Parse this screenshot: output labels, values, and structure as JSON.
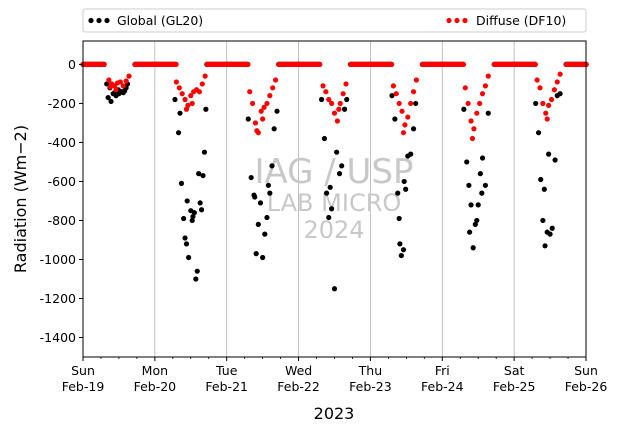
{
  "chart_data": {
    "type": "scatter",
    "xlabel": "2023",
    "ylabel": "Radiation (Wm−2)",
    "ylim": [
      -1500,
      120
    ],
    "yticks": [
      0,
      -200,
      -400,
      -600,
      -800,
      -1000,
      -1200,
      -1400
    ],
    "xlim": [
      0,
      7
    ],
    "xticks": [
      {
        "x": 0,
        "day": "Sun",
        "date": "Feb-19"
      },
      {
        "x": 1,
        "day": "Mon",
        "date": "Feb-20"
      },
      {
        "x": 2,
        "day": "Tue",
        "date": "Feb-21"
      },
      {
        "x": 3,
        "day": "Wed",
        "date": "Feb-22"
      },
      {
        "x": 4,
        "day": "Thu",
        "date": "Feb-23"
      },
      {
        "x": 5,
        "day": "Fri",
        "date": "Feb-24"
      },
      {
        "x": 6,
        "day": "Sat",
        "date": "Feb-25"
      },
      {
        "x": 7,
        "day": "Sun",
        "date": "Feb-26"
      }
    ],
    "grid": "vertical",
    "legend": {
      "placement": "top, above plot"
    },
    "watermark": [
      "IAG / USP",
      "LAB MICRO",
      "2024"
    ],
    "series": [
      {
        "name": "Global (GL20)",
        "color": "#000000",
        "points": [
          [
            0.33,
            -100
          ],
          [
            0.375,
            -120
          ],
          [
            0.42,
            -150
          ],
          [
            0.46,
            -160
          ],
          [
            0.5,
            -150
          ],
          [
            0.54,
            -140
          ],
          [
            0.58,
            -135
          ],
          [
            0.62,
            -100
          ],
          [
            0.35,
            -170
          ],
          [
            0.39,
            -190
          ],
          [
            0.44,
            -145
          ],
          [
            0.49,
            -130
          ],
          [
            0.56,
            -145
          ],
          [
            0.6,
            -120
          ],
          [
            1.28,
            -180
          ],
          [
            1.33,
            -350
          ],
          [
            1.37,
            -610
          ],
          [
            1.4,
            -790
          ],
          [
            1.42,
            -890
          ],
          [
            1.44,
            -920
          ],
          [
            1.47,
            -990
          ],
          [
            1.5,
            -750
          ],
          [
            1.52,
            -800
          ],
          [
            1.55,
            -760
          ],
          [
            1.57,
            -1100
          ],
          [
            1.59,
            -1060
          ],
          [
            1.61,
            -560
          ],
          [
            1.63,
            -710
          ],
          [
            1.65,
            -745
          ],
          [
            1.67,
            -570
          ],
          [
            1.69,
            -450
          ],
          [
            1.71,
            -230
          ],
          [
            1.45,
            -700
          ],
          [
            1.53,
            -780
          ],
          [
            1.35,
            -250
          ],
          [
            2.3,
            -280
          ],
          [
            2.34,
            -580
          ],
          [
            2.38,
            -670
          ],
          [
            2.41,
            -970
          ],
          [
            2.44,
            -820
          ],
          [
            2.47,
            -710
          ],
          [
            2.5,
            -990
          ],
          [
            2.53,
            -870
          ],
          [
            2.56,
            -785
          ],
          [
            2.6,
            -660
          ],
          [
            2.63,
            -520
          ],
          [
            2.66,
            -330
          ],
          [
            2.7,
            -240
          ],
          [
            2.39,
            -680
          ],
          [
            2.58,
            -620
          ],
          [
            3.32,
            -180
          ],
          [
            3.36,
            -380
          ],
          [
            3.39,
            -660
          ],
          [
            3.42,
            -785
          ],
          [
            3.46,
            -740
          ],
          [
            3.5,
            -1150
          ],
          [
            3.53,
            -450
          ],
          [
            3.57,
            -560
          ],
          [
            3.6,
            -520
          ],
          [
            3.64,
            -230
          ],
          [
            3.67,
            -180
          ],
          [
            3.44,
            -630
          ],
          [
            4.3,
            -160
          ],
          [
            4.34,
            -280
          ],
          [
            4.38,
            -660
          ],
          [
            4.41,
            -920
          ],
          [
            4.43,
            -980
          ],
          [
            4.46,
            -950
          ],
          [
            4.49,
            -640
          ],
          [
            4.52,
            -470
          ],
          [
            4.56,
            -460
          ],
          [
            4.6,
            -330
          ],
          [
            4.63,
            -200
          ],
          [
            4.4,
            -790
          ],
          [
            4.47,
            -600
          ],
          [
            5.3,
            -230
          ],
          [
            5.34,
            -500
          ],
          [
            5.37,
            -620
          ],
          [
            5.4,
            -720
          ],
          [
            5.43,
            -940
          ],
          [
            5.46,
            -820
          ],
          [
            5.5,
            -720
          ],
          [
            5.53,
            -560
          ],
          [
            5.56,
            -480
          ],
          [
            5.6,
            -620
          ],
          [
            5.64,
            -250
          ],
          [
            5.38,
            -860
          ],
          [
            5.48,
            -800
          ],
          [
            5.55,
            -660
          ],
          [
            6.3,
            -200
          ],
          [
            6.34,
            -350
          ],
          [
            6.37,
            -590
          ],
          [
            6.4,
            -800
          ],
          [
            6.43,
            -930
          ],
          [
            6.46,
            -860
          ],
          [
            6.5,
            -870
          ],
          [
            6.53,
            -840
          ],
          [
            6.57,
            -490
          ],
          [
            6.6,
            -160
          ],
          [
            6.64,
            -150
          ],
          [
            6.42,
            -640
          ],
          [
            6.48,
            -460
          ]
        ]
      },
      {
        "name": "Diffuse (DF10)",
        "color": "#ff0000",
        "points": [
          [
            0.36,
            -80
          ],
          [
            0.4,
            -100
          ],
          [
            0.44,
            -110
          ],
          [
            0.48,
            -95
          ],
          [
            0.52,
            -90
          ],
          [
            0.56,
            -110
          ],
          [
            0.6,
            -85
          ],
          [
            0.64,
            -60
          ],
          [
            0.38,
            -115
          ],
          [
            0.46,
            -130
          ],
          [
            1.3,
            -90
          ],
          [
            1.34,
            -120
          ],
          [
            1.38,
            -150
          ],
          [
            1.42,
            -180
          ],
          [
            1.46,
            -210
          ],
          [
            1.5,
            -160
          ],
          [
            1.54,
            -140
          ],
          [
            1.58,
            -130
          ],
          [
            1.62,
            -140
          ],
          [
            1.66,
            -100
          ],
          [
            1.7,
            -60
          ],
          [
            1.44,
            -230
          ],
          [
            1.52,
            -200
          ],
          [
            2.32,
            -140
          ],
          [
            2.36,
            -200
          ],
          [
            2.4,
            -300
          ],
          [
            2.44,
            -350
          ],
          [
            2.48,
            -240
          ],
          [
            2.52,
            -220
          ],
          [
            2.56,
            -200
          ],
          [
            2.6,
            -160
          ],
          [
            2.64,
            -120
          ],
          [
            2.68,
            -80
          ],
          [
            2.42,
            -340
          ],
          [
            2.5,
            -280
          ],
          [
            3.34,
            -110
          ],
          [
            3.38,
            -140
          ],
          [
            3.42,
            -180
          ],
          [
            3.46,
            -200
          ],
          [
            3.5,
            -250
          ],
          [
            3.54,
            -290
          ],
          [
            3.58,
            -200
          ],
          [
            3.62,
            -150
          ],
          [
            3.66,
            -100
          ],
          [
            3.56,
            -230
          ],
          [
            4.32,
            -110
          ],
          [
            4.36,
            -150
          ],
          [
            4.4,
            -200
          ],
          [
            4.44,
            -240
          ],
          [
            4.48,
            -310
          ],
          [
            4.52,
            -270
          ],
          [
            4.56,
            -200
          ],
          [
            4.6,
            -140
          ],
          [
            4.64,
            -80
          ],
          [
            4.46,
            -350
          ],
          [
            5.32,
            -120
          ],
          [
            5.36,
            -200
          ],
          [
            5.4,
            -290
          ],
          [
            5.44,
            -330
          ],
          [
            5.48,
            -250
          ],
          [
            5.52,
            -200
          ],
          [
            5.56,
            -150
          ],
          [
            5.6,
            -110
          ],
          [
            5.64,
            -60
          ],
          [
            5.42,
            -380
          ],
          [
            6.32,
            -80
          ],
          [
            6.36,
            -120
          ],
          [
            6.4,
            -200
          ],
          [
            6.44,
            -250
          ],
          [
            6.48,
            -210
          ],
          [
            6.52,
            -180
          ],
          [
            6.56,
            -130
          ],
          [
            6.6,
            -90
          ],
          [
            6.64,
            -50
          ],
          [
            6.46,
            -280
          ]
        ]
      }
    ]
  }
}
